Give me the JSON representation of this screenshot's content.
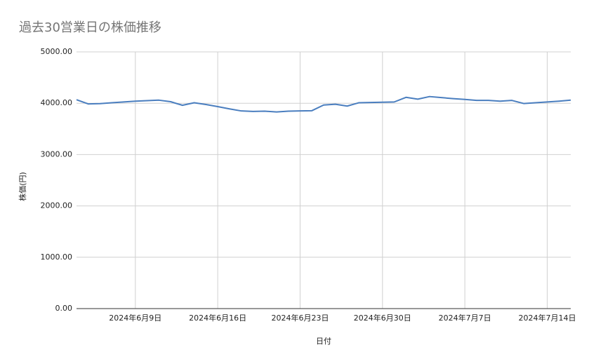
{
  "chart_data": {
    "type": "line",
    "title": "過去30営業日の株価推移",
    "x_label": "日付",
    "y_label": "株価(円)",
    "x": [
      "2024-06-04",
      "2024-06-05",
      "2024-06-06",
      "2024-06-07",
      "2024-06-08",
      "2024-06-09",
      "2024-06-10",
      "2024-06-11",
      "2024-06-12",
      "2024-06-13",
      "2024-06-14",
      "2024-06-15",
      "2024-06-16",
      "2024-06-17",
      "2024-06-18",
      "2024-06-19",
      "2024-06-20",
      "2024-06-21",
      "2024-06-22",
      "2024-06-23",
      "2024-06-24",
      "2024-06-25",
      "2024-06-26",
      "2024-06-27",
      "2024-06-28",
      "2024-06-29",
      "2024-06-30",
      "2024-07-01",
      "2024-07-02",
      "2024-07-03",
      "2024-07-04",
      "2024-07-05",
      "2024-07-06",
      "2024-07-07",
      "2024-07-08",
      "2024-07-09",
      "2024-07-10",
      "2024-07-11",
      "2024-07-12",
      "2024-07-13",
      "2024-07-14",
      "2024-07-15",
      "2024-07-16"
    ],
    "series": [
      {
        "name": "株価",
        "color": "#4a7ebf",
        "values": [
          4068,
          3986,
          3993,
          4010,
          4025,
          4040,
          4050,
          4060,
          4030,
          3960,
          4010,
          3975,
          3935,
          3890,
          3850,
          3840,
          3845,
          3830,
          3845,
          3850,
          3855,
          3965,
          3980,
          3945,
          4010,
          4015,
          4020,
          4025,
          4115,
          4080,
          4130,
          4110,
          4090,
          4075,
          4055,
          4055,
          4040,
          4055,
          3995,
          4010,
          4025,
          4040,
          4060
        ]
      }
    ],
    "xlim": [
      "2024-06-04",
      "2024-07-16"
    ],
    "xticks": [
      {
        "value": "2024-06-09",
        "label": "2024年6月9日"
      },
      {
        "value": "2024-06-16",
        "label": "2024年6月16日"
      },
      {
        "value": "2024-06-23",
        "label": "2024年6月23日"
      },
      {
        "value": "2024-06-30",
        "label": "2024年6月30日"
      },
      {
        "value": "2024-07-07",
        "label": "2024年7月7日"
      },
      {
        "value": "2024-07-14",
        "label": "2024年7月14日"
      }
    ],
    "ylim": [
      0,
      5000
    ],
    "yticks": [
      {
        "value": 0,
        "label": "0.00"
      },
      {
        "value": 1000,
        "label": "1000.00"
      },
      {
        "value": 2000,
        "label": "2000.00"
      },
      {
        "value": 3000,
        "label": "3000.00"
      },
      {
        "value": 4000,
        "label": "4000.00"
      },
      {
        "value": 5000,
        "label": "5000.00"
      }
    ],
    "grid": true
  }
}
